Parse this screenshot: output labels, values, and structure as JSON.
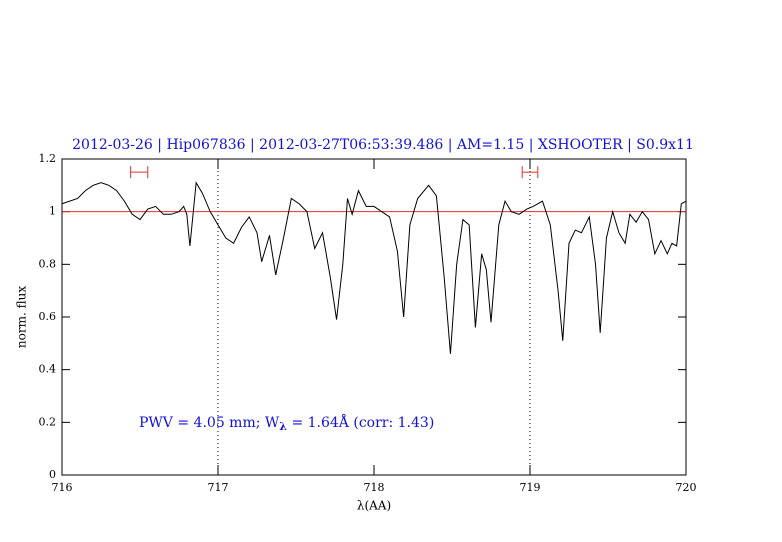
{
  "chart_data": {
    "type": "line",
    "title": "2012-03-26 | Hip067836 | 2012-03-27T06:53:39.486 | AM=1.15 | XSHOOTER | S0.9x11",
    "x_label": "λ(AA)",
    "y_label": "norm. flux",
    "annotation": [
      "PWV = 4.05 mm; W",
      "λ",
      " = 1.64Å (corr: 1.43)"
    ],
    "xlim": [
      716,
      720
    ],
    "ylim": [
      0,
      1.2
    ],
    "xticks": [
      716,
      717,
      718,
      719,
      720
    ],
    "yticks": [
      0,
      0.2,
      0.4,
      0.6,
      0.8,
      1,
      1.2
    ],
    "color": "#000000",
    "reference_line": {
      "y": 1,
      "color": "#e03030"
    },
    "vlines": [
      717,
      719
    ],
    "marker_ranges": [
      [
        716.44,
        716.55
      ],
      [
        718.95,
        719.05
      ]
    ],
    "marker_y": 1.15,
    "marker_color": "#e03030",
    "x": [
      716.0,
      716.1,
      716.15,
      716.2,
      716.25,
      716.3,
      716.35,
      716.4,
      716.45,
      716.5,
      716.55,
      716.6,
      716.65,
      716.7,
      716.75,
      716.78,
      716.8,
      716.82,
      716.86,
      716.9,
      716.95,
      717.0,
      717.05,
      717.1,
      717.15,
      717.2,
      717.25,
      717.28,
      717.3,
      717.33,
      717.37,
      717.42,
      717.47,
      717.52,
      717.57,
      717.62,
      717.67,
      717.72,
      717.76,
      717.8,
      717.83,
      717.86,
      717.9,
      717.95,
      718.0,
      718.05,
      718.1,
      718.15,
      718.19,
      718.23,
      718.28,
      718.35,
      718.4,
      718.45,
      718.49,
      718.53,
      718.57,
      718.61,
      718.65,
      718.69,
      718.72,
      718.75,
      718.8,
      718.84,
      718.88,
      718.93,
      718.98,
      719.02,
      719.08,
      719.13,
      719.18,
      719.21,
      719.25,
      719.29,
      719.33,
      719.38,
      719.42,
      719.45,
      719.49,
      719.53,
      719.57,
      719.61,
      719.64,
      719.68,
      719.72,
      719.76,
      719.8,
      719.84,
      719.88,
      719.91,
      719.94,
      719.97,
      720.0
    ],
    "values": [
      1.03,
      1.05,
      1.08,
      1.1,
      1.11,
      1.1,
      1.08,
      1.04,
      0.99,
      0.97,
      1.01,
      1.02,
      0.99,
      0.99,
      1.0,
      1.02,
      0.99,
      0.87,
      1.11,
      1.07,
      1.0,
      0.95,
      0.9,
      0.88,
      0.94,
      0.98,
      0.92,
      0.81,
      0.85,
      0.91,
      0.76,
      0.9,
      1.05,
      1.03,
      1.0,
      0.86,
      0.92,
      0.75,
      0.59,
      0.8,
      1.05,
      0.99,
      1.08,
      1.02,
      1.02,
      1.0,
      0.98,
      0.85,
      0.6,
      0.95,
      1.05,
      1.1,
      1.06,
      0.75,
      0.46,
      0.8,
      0.97,
      0.95,
      0.56,
      0.84,
      0.78,
      0.58,
      0.95,
      1.04,
      1.0,
      0.99,
      1.01,
      1.02,
      1.04,
      0.95,
      0.7,
      0.51,
      0.88,
      0.93,
      0.92,
      0.98,
      0.8,
      0.54,
      0.9,
      1.0,
      0.92,
      0.88,
      0.99,
      0.96,
      1.0,
      0.97,
      0.84,
      0.89,
      0.84,
      0.88,
      0.87,
      1.03,
      1.04
    ]
  }
}
